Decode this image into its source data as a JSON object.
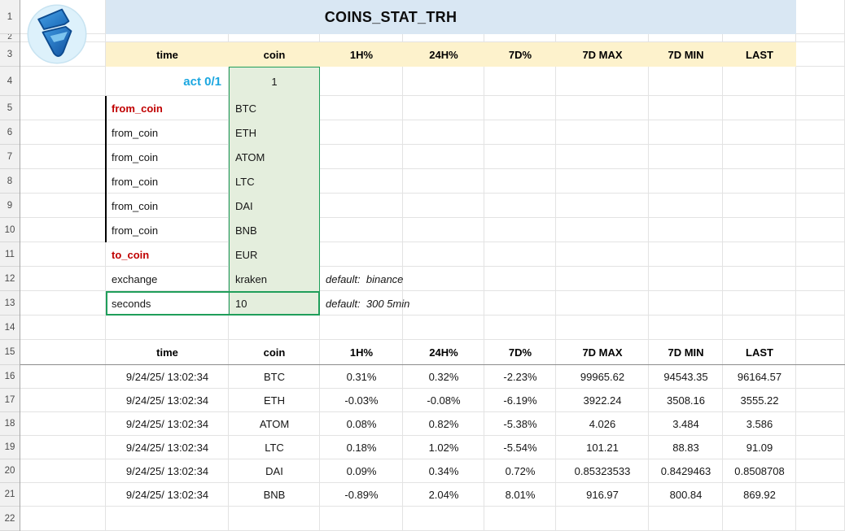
{
  "sheet": {
    "title": "COINS_STAT_TRH"
  },
  "header_top": [
    "time",
    "coin",
    "1H%",
    "24H%",
    "7D%",
    "7D MAX",
    "7D MIN",
    "LAST"
  ],
  "config": {
    "act_label": "act 0/1",
    "act_value": "1",
    "rows": [
      {
        "label": "from_coin",
        "value": "BTC",
        "emphasis": true
      },
      {
        "label": "from_coin",
        "value": "ETH"
      },
      {
        "label": "from_coin",
        "value": "ATOM"
      },
      {
        "label": "from_coin",
        "value": "LTC"
      },
      {
        "label": "from_coin",
        "value": "DAI"
      },
      {
        "label": "from_coin",
        "value": "BNB"
      },
      {
        "label": "to_coin",
        "value": "EUR",
        "emphasis": true
      },
      {
        "label": "exchange",
        "value": "kraken",
        "note": "default:  binance"
      },
      {
        "label": "seconds",
        "value": "10",
        "note": "default:  300 5min"
      }
    ]
  },
  "table": {
    "header": [
      "time",
      "coin",
      "1H%",
      "24H%",
      "7D%",
      "7D MAX",
      "7D MIN",
      "LAST"
    ],
    "rows": [
      [
        "9/24/25/ 13:02:34",
        "BTC",
        "0.31%",
        "0.32%",
        "-2.23%",
        "99965.62",
        "94543.35",
        "96164.57"
      ],
      [
        "9/24/25/ 13:02:34",
        "ETH",
        "-0.03%",
        "-0.08%",
        "-6.19%",
        "3922.24",
        "3508.16",
        "3555.22"
      ],
      [
        "9/24/25/ 13:02:34",
        "ATOM",
        "0.08%",
        "0.82%",
        "-5.38%",
        "4.026",
        "3.484",
        "3.586"
      ],
      [
        "9/24/25/ 13:02:34",
        "LTC",
        "0.18%",
        "1.02%",
        "-5.54%",
        "101.21",
        "88.83",
        "91.09"
      ],
      [
        "9/24/25/ 13:02:34",
        "DAI",
        "0.09%",
        "0.34%",
        "0.72%",
        "0.85323533",
        "0.8429463",
        "0.8508708"
      ],
      [
        "9/24/25/ 13:02:34",
        "BNB",
        "-0.89%",
        "2.04%",
        "8.01%",
        "916.97",
        "800.84",
        "869.92"
      ]
    ]
  },
  "gutter": {
    "rows": [
      "1",
      "2",
      "3",
      "4",
      "5",
      "6",
      "7",
      "8",
      "9",
      "10",
      "11",
      "12",
      "13",
      "14",
      "15",
      "16",
      "17",
      "18",
      "19",
      "20",
      "21",
      "22"
    ]
  },
  "colors": {
    "title_bg": "#d9e7f3",
    "header_bg": "#fdf2cc",
    "input_bg": "#e4eedd",
    "input_border": "#1f9e5a",
    "accent_red": "#c00000",
    "accent_cyan": "#1ca7e0"
  },
  "icons": {
    "logo": "shield-logo"
  }
}
